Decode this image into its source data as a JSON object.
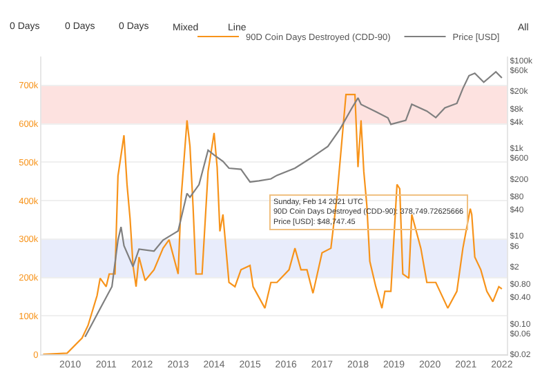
{
  "chart_data": {
    "type": "line",
    "series": [
      {
        "name": "90D Coin Days Destroyed (CDD-90)",
        "color": "#f7931a",
        "x": [
          "2009-04",
          "2009-12",
          "2010-05",
          "2010-07",
          "2010-10",
          "2010-11",
          "2011-01",
          "2011-02",
          "2011-04",
          "2011-05",
          "2011-07",
          "2011-08",
          "2011-09",
          "2011-10",
          "2011-11",
          "2011-12",
          "2012-02",
          "2012-05",
          "2012-08",
          "2012-10",
          "2013-01",
          "2013-02",
          "2013-04",
          "2013-05",
          "2013-06",
          "2013-07",
          "2013-09",
          "2013-11",
          "2014-01",
          "2014-02",
          "2014-03",
          "2014-04",
          "2014-06",
          "2014-08",
          "2014-10",
          "2015-01",
          "2015-02",
          "2015-06",
          "2015-08",
          "2015-10",
          "2016-02",
          "2016-04",
          "2016-06",
          "2016-08",
          "2016-10",
          "2017-01",
          "2017-04",
          "2017-06",
          "2017-09",
          "2017-10",
          "2017-12",
          "2018-01",
          "2018-02",
          "2018-03",
          "2018-04",
          "2018-05",
          "2018-07",
          "2018-09",
          "2018-10",
          "2018-12",
          "2019-02",
          "2019-03",
          "2019-04",
          "2019-06",
          "2019-07",
          "2019-10",
          "2019-12",
          "2020-03",
          "2020-07",
          "2020-10",
          "2020-12",
          "2021-02-14",
          "2021-03",
          "2021-04",
          "2021-06",
          "2021-08",
          "2021-10",
          "2021-12",
          "2022-01"
        ],
        "values": [
          0,
          3000,
          42000,
          75000,
          153000,
          198000,
          176000,
          209000,
          209000,
          464000,
          570000,
          442000,
          353000,
          231000,
          176000,
          253000,
          192000,
          220000,
          276000,
          298000,
          209000,
          409000,
          609000,
          542000,
          387000,
          209000,
          209000,
          476000,
          576000,
          487000,
          320000,
          364000,
          187000,
          176000,
          220000,
          231000,
          176000,
          120000,
          187000,
          187000,
          220000,
          276000,
          220000,
          220000,
          159000,
          264000,
          276000,
          409000,
          676000,
          676000,
          676000,
          487000,
          609000,
          476000,
          387000,
          242000,
          176000,
          120000,
          164000,
          164000,
          442000,
          431000,
          209000,
          198000,
          364000,
          276000,
          187000,
          187000,
          120000,
          164000,
          276000,
          379000,
          364000,
          253000,
          220000,
          164000,
          137000,
          176000,
          170000
        ]
      },
      {
        "name": "Price [USD]",
        "color": "#7f7f7f",
        "axis": "y2",
        "x": [
          "2010-06",
          "2010-08",
          "2010-11",
          "2011-03",
          "2011-05",
          "2011-06",
          "2011-07",
          "2011-10",
          "2011-12",
          "2012-05",
          "2012-08",
          "2013-01",
          "2013-04",
          "2013-05",
          "2013-08",
          "2013-11",
          "2014-01",
          "2014-04",
          "2014-06",
          "2014-10",
          "2015-01",
          "2015-04",
          "2015-08",
          "2015-10",
          "2016-04",
          "2016-09",
          "2017-03",
          "2017-07",
          "2017-11",
          "2018-01",
          "2018-02",
          "2018-07",
          "2018-11",
          "2018-12",
          "2019-05",
          "2019-07",
          "2019-12",
          "2020-03",
          "2020-06",
          "2020-10",
          "2020-12",
          "2021-02",
          "2021-04",
          "2021-07",
          "2021-11",
          "2022-01"
        ],
        "values": [
          0.05,
          0.09,
          0.22,
          0.7,
          8,
          16,
          6,
          2,
          5,
          4.5,
          8,
          13,
          93,
          76,
          148,
          900,
          700,
          500,
          350,
          330,
          170,
          180,
          200,
          240,
          350,
          580,
          1100,
          2700,
          8300,
          14000,
          10000,
          6800,
          4900,
          3500,
          4300,
          10000,
          7000,
          5000,
          8300,
          10500,
          23000,
          45000,
          51000,
          32000,
          55000,
          40000
        ]
      }
    ],
    "xlim": [
      "2009-03-15",
      "2022-02-20"
    ],
    "xticks": [
      {
        "value": "2010-01-01",
        "label": "2010"
      },
      {
        "value": "2011-01-01",
        "label": "2011"
      },
      {
        "value": "2012-01-01",
        "label": "2012"
      },
      {
        "value": "2013-01-01",
        "label": "2013"
      },
      {
        "value": "2014-01-01",
        "label": "2014"
      },
      {
        "value": "2015-01-01",
        "label": "2015"
      },
      {
        "value": "2016-01-01",
        "label": "2016"
      },
      {
        "value": "2017-01-01",
        "label": "2017"
      },
      {
        "value": "2018-01-01",
        "label": "2018"
      },
      {
        "value": "2019-01-01",
        "label": "2019"
      },
      {
        "value": "2020-01-01",
        "label": "2020"
      },
      {
        "value": "2021-01-01",
        "label": "2021"
      },
      {
        "value": "2022-01-01",
        "label": "2022"
      }
    ],
    "ylim": [
      0,
      775000
    ],
    "yticks": [
      {
        "value": 0,
        "label": "0"
      },
      {
        "value": 100000,
        "label": "100k"
      },
      {
        "value": 200000,
        "label": "200k"
      },
      {
        "value": 300000,
        "label": "300k"
      },
      {
        "value": 400000,
        "label": "400k"
      },
      {
        "value": 500000,
        "label": "500k"
      },
      {
        "value": 600000,
        "label": "600k"
      },
      {
        "value": 700000,
        "label": "700k"
      }
    ],
    "y2lim": [
      0.02,
      123000
    ],
    "y2ticks": [
      {
        "value": 100000,
        "label": "$100k"
      },
      {
        "value": 60000,
        "label": "$60k"
      },
      {
        "value": 20000,
        "label": "$20k"
      },
      {
        "value": 8000,
        "label": "$8k"
      },
      {
        "value": 4000,
        "label": "$4k"
      },
      {
        "value": 1000,
        "label": "$1k"
      },
      {
        "value": 600,
        "label": "$600"
      },
      {
        "value": 200,
        "label": "$200"
      },
      {
        "value": 80,
        "label": "$80"
      },
      {
        "value": 40,
        "label": "$40"
      },
      {
        "value": 10,
        "label": "$10"
      },
      {
        "value": 6,
        "label": "$6"
      },
      {
        "value": 2,
        "label": "$2"
      },
      {
        "value": 0.8,
        "label": "$0.80"
      },
      {
        "value": 0.4,
        "label": "$0.40"
      },
      {
        "value": 0.1,
        "label": "$0.10"
      },
      {
        "value": 0.06,
        "label": "$0.06"
      },
      {
        "value": 0.02,
        "label": "$0.02"
      }
    ],
    "log": "y2",
    "grid": "y",
    "legend": "top right",
    "bands": [
      {
        "axis": "y",
        "from": 600000,
        "to": 700000,
        "color": "#fde2e0"
      },
      {
        "axis": "y",
        "from": 200000,
        "to": 300000,
        "color": "#e8ecfb"
      }
    ],
    "annotations": [
      "0 Days",
      "0 Days",
      "0 Days",
      "Mixed",
      "Line",
      "All",
      "Sunday, Feb 14 2021 UTC\n90D Coin Days Destroyed (CDD-90): 378,749.72625666\nPrice [USD]: $48,747.45"
    ]
  }
}
